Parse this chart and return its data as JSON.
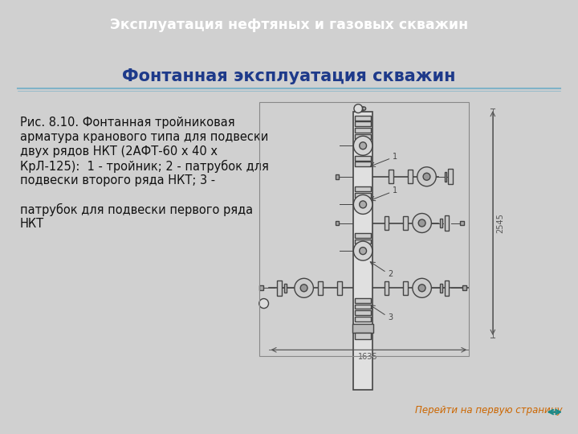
{
  "header_text": "Эксплуатация нефтяных и газовых скважин",
  "header_bg": "#1e3a8a",
  "header_text_color": "#ffffff",
  "title_text": "Фонтанная эксплуатация скважин",
  "title_color": "#1e3a8a",
  "outer_bg": "#d0d0d0",
  "slide_bg": "#ffffff",
  "line_color": "#7fb3c8",
  "caption_lines": [
    "Рис. 8.10. Фонтанная тройниковая",
    "арматура кранового типа для подвески",
    "двух рядов НКТ (2АФТ-60 х 40 х",
    "КрЛ-125):  1 - тройник; 2 - патрубок для",
    "подвески второго ряда НКТ; 3 -",
    "",
    "патрубок для подвески первого ряда",
    "НКТ"
  ],
  "caption_color": "#111111",
  "caption_fontsize": 10.5,
  "footer_text": "Перейти на первую страницу",
  "footer_color": "#cc6600",
  "draw_color": "#444444",
  "draw_light": "#cccccc",
  "draw_mid": "#aaaaaa"
}
